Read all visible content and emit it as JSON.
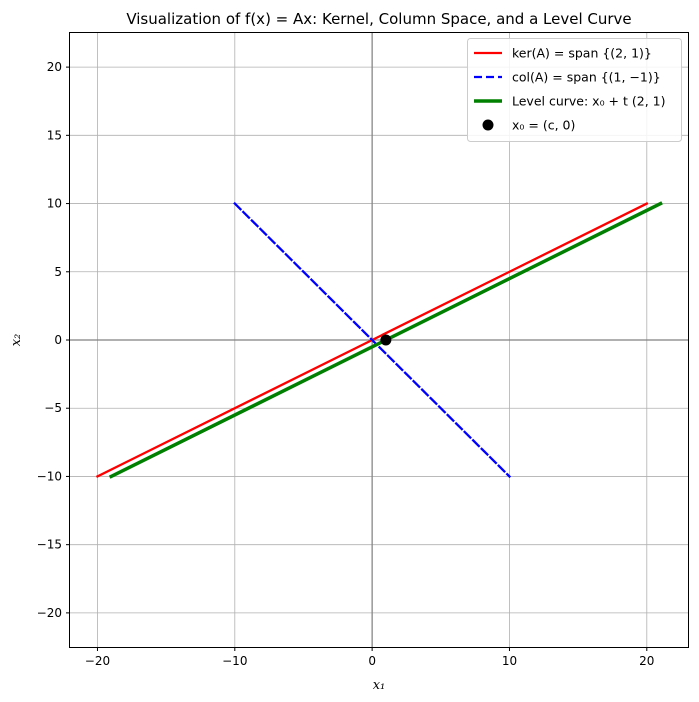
{
  "chart_data": {
    "type": "line",
    "title": "Visualization of f(x) = Ax: Kernel, Column Space, and a Level Curve",
    "xlabel": "x₁",
    "ylabel": "x₂",
    "xlim": [
      -22,
      23
    ],
    "ylim": [
      -22.5,
      22.5
    ],
    "x_ticks": [
      -20,
      -10,
      0,
      10,
      20
    ],
    "y_ticks": [
      -20,
      -15,
      -10,
      -5,
      0,
      5,
      10,
      15,
      20
    ],
    "grid": true,
    "legend_position": "top-right",
    "series": [
      {
        "name": "ker(A) = span {(2, 1)}",
        "kind": "line",
        "color": "#ff0000",
        "style": "solid",
        "points": [
          [
            -20,
            -10
          ],
          [
            20,
            10
          ]
        ]
      },
      {
        "name": "col(A) = span {(1, −1)}",
        "kind": "line",
        "color": "#0000ff",
        "style": "dashed",
        "points": [
          [
            -10,
            10
          ],
          [
            10,
            -10
          ]
        ]
      },
      {
        "name": "Level curve: x₀ + t (2, 1)",
        "kind": "line",
        "color": "#008000",
        "style": "solid",
        "points": [
          [
            -19,
            -10
          ],
          [
            21,
            10
          ]
        ]
      },
      {
        "name": "x₀ = (c, 0)",
        "kind": "point",
        "color": "#000000",
        "points": [
          [
            1,
            0
          ]
        ]
      }
    ]
  }
}
